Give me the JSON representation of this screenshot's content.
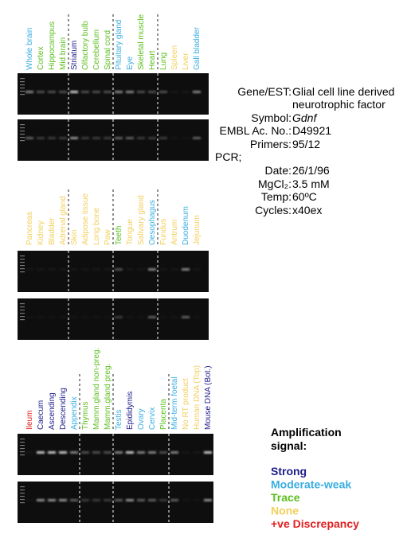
{
  "panels": [
    {
      "lanes": [
        {
          "label": "Whole brain",
          "color": "#3aaee0"
        },
        {
          "label": "Cortex",
          "color": "#5cbf1f"
        },
        {
          "label": "Hippocampus",
          "color": "#5cbf1f"
        },
        {
          "label": "Mid brain",
          "color": "#5cbf1f"
        },
        {
          "label": "Striatum",
          "color": "#1c1c8a"
        },
        {
          "label": "Olfactory bulb",
          "color": "#5cbf1f"
        },
        {
          "label": "Cerebellum",
          "color": "#5cbf1f"
        },
        {
          "label": "Spinal cord",
          "color": "#5cbf1f"
        },
        {
          "label": "Pituitary gland",
          "color": "#3aaee0"
        },
        {
          "label": "Eye",
          "color": "#3aaee0"
        },
        {
          "label": "Skeletal muscle",
          "color": "#5cbf1f"
        },
        {
          "label": "Heart",
          "color": "#5cbf1f"
        },
        {
          "label": "Lung",
          "color": "#5cbf1f"
        },
        {
          "label": "Spleen",
          "color": "#f2cf5c"
        },
        {
          "label": "Liver",
          "color": "#f2cf5c"
        },
        {
          "label": "Gall bladder",
          "color": "#3aaee0"
        }
      ]
    },
    {
      "lanes": [
        {
          "label": "Pancreas",
          "color": "#f2cf5c"
        },
        {
          "label": "Kidney",
          "color": "#f2cf5c"
        },
        {
          "label": "Bladder",
          "color": "#f2cf5c"
        },
        {
          "label": "Adrenal gland",
          "color": "#f2cf5c"
        },
        {
          "label": "Skin",
          "color": "#f2cf5c"
        },
        {
          "label": "Adipose tissue",
          "color": "#f2cf5c"
        },
        {
          "label": "Long bone",
          "color": "#f2cf5c"
        },
        {
          "label": "Paw",
          "color": "#f2cf5c"
        },
        {
          "label": "Teeth",
          "color": "#5cbf1f"
        },
        {
          "label": "Tongue",
          "color": "#f2cf5c"
        },
        {
          "label": "Salivary gland",
          "color": "#f2cf5c"
        },
        {
          "label": "Oesophagus",
          "color": "#3aaee0"
        },
        {
          "label": "Fundus",
          "color": "#f2cf5c"
        },
        {
          "label": "Antrum",
          "color": "#f2cf5c"
        },
        {
          "label": "Duodenum",
          "color": "#3aaee0"
        },
        {
          "label": "Jejunum",
          "color": "#f2cf5c"
        }
      ]
    },
    {
      "lanes": [
        {
          "label": "Ileum",
          "color": "#e02020"
        },
        {
          "label": "Caecum",
          "color": "#1c1c8a"
        },
        {
          "label": "Ascending",
          "color": "#1c1c8a"
        },
        {
          "label": "Descending",
          "color": "#1c1c8a"
        },
        {
          "label": "Appendix",
          "color": "#3aaee0"
        },
        {
          "label": "Thymus",
          "color": "#5cbf1f"
        },
        {
          "label": "Mamm.gland non-preg.",
          "color": "#5cbf1f"
        },
        {
          "label": "Mamm.gland preg.",
          "color": "#5cbf1f"
        },
        {
          "label": "Testis",
          "color": "#3aaee0"
        },
        {
          "label": "Epididymis",
          "color": "#1c1c8a"
        },
        {
          "label": "Ovary",
          "color": "#3aaee0"
        },
        {
          "label": "Cervix",
          "color": "#3aaee0"
        },
        {
          "label": "Placenta",
          "color": "#5cbf1f"
        },
        {
          "label": "Mid-term foetal",
          "color": "#3aaee0"
        },
        {
          "label": "No RT product",
          "color": "#f2cf5c"
        },
        {
          "label": "Human DNA (Top)",
          "color": "#f2cf5c"
        },
        {
          "label": "Mouse DNA (Bot.)",
          "color": "#1c1c8a"
        }
      ]
    }
  ],
  "info": [
    {
      "key": "Gene/EST:",
      "value": "Glial cell line derived",
      "value2": "neurotrophic factor"
    },
    {
      "key": "Symbol:",
      "value": "Gdnf"
    },
    {
      "key": "EMBL Ac. No.:",
      "value": "D49921"
    },
    {
      "key": "Primers:",
      "value": "95/12"
    },
    {
      "key": "PCR;"
    },
    {
      "key": "Date:",
      "value": "26/1/96"
    },
    {
      "key": "MgCl₂:",
      "value": "3.5 mM"
    },
    {
      "key": "Temp:",
      "value": "60ºC"
    },
    {
      "key": "Cycles:",
      "value": "x40ex"
    }
  ],
  "legend": {
    "title": "Amplification",
    "title2": "signal:",
    "entries": [
      {
        "label": "Strong",
        "color": "#1c1c8a"
      },
      {
        "label": "Moderate-weak",
        "color": "#3aaee0"
      },
      {
        "label": "Trace",
        "color": "#5cbf1f"
      },
      {
        "label": "None",
        "color": "#f2cf5c"
      },
      {
        "label": "+ve Discrepancy",
        "color": "#e02020"
      }
    ]
  }
}
